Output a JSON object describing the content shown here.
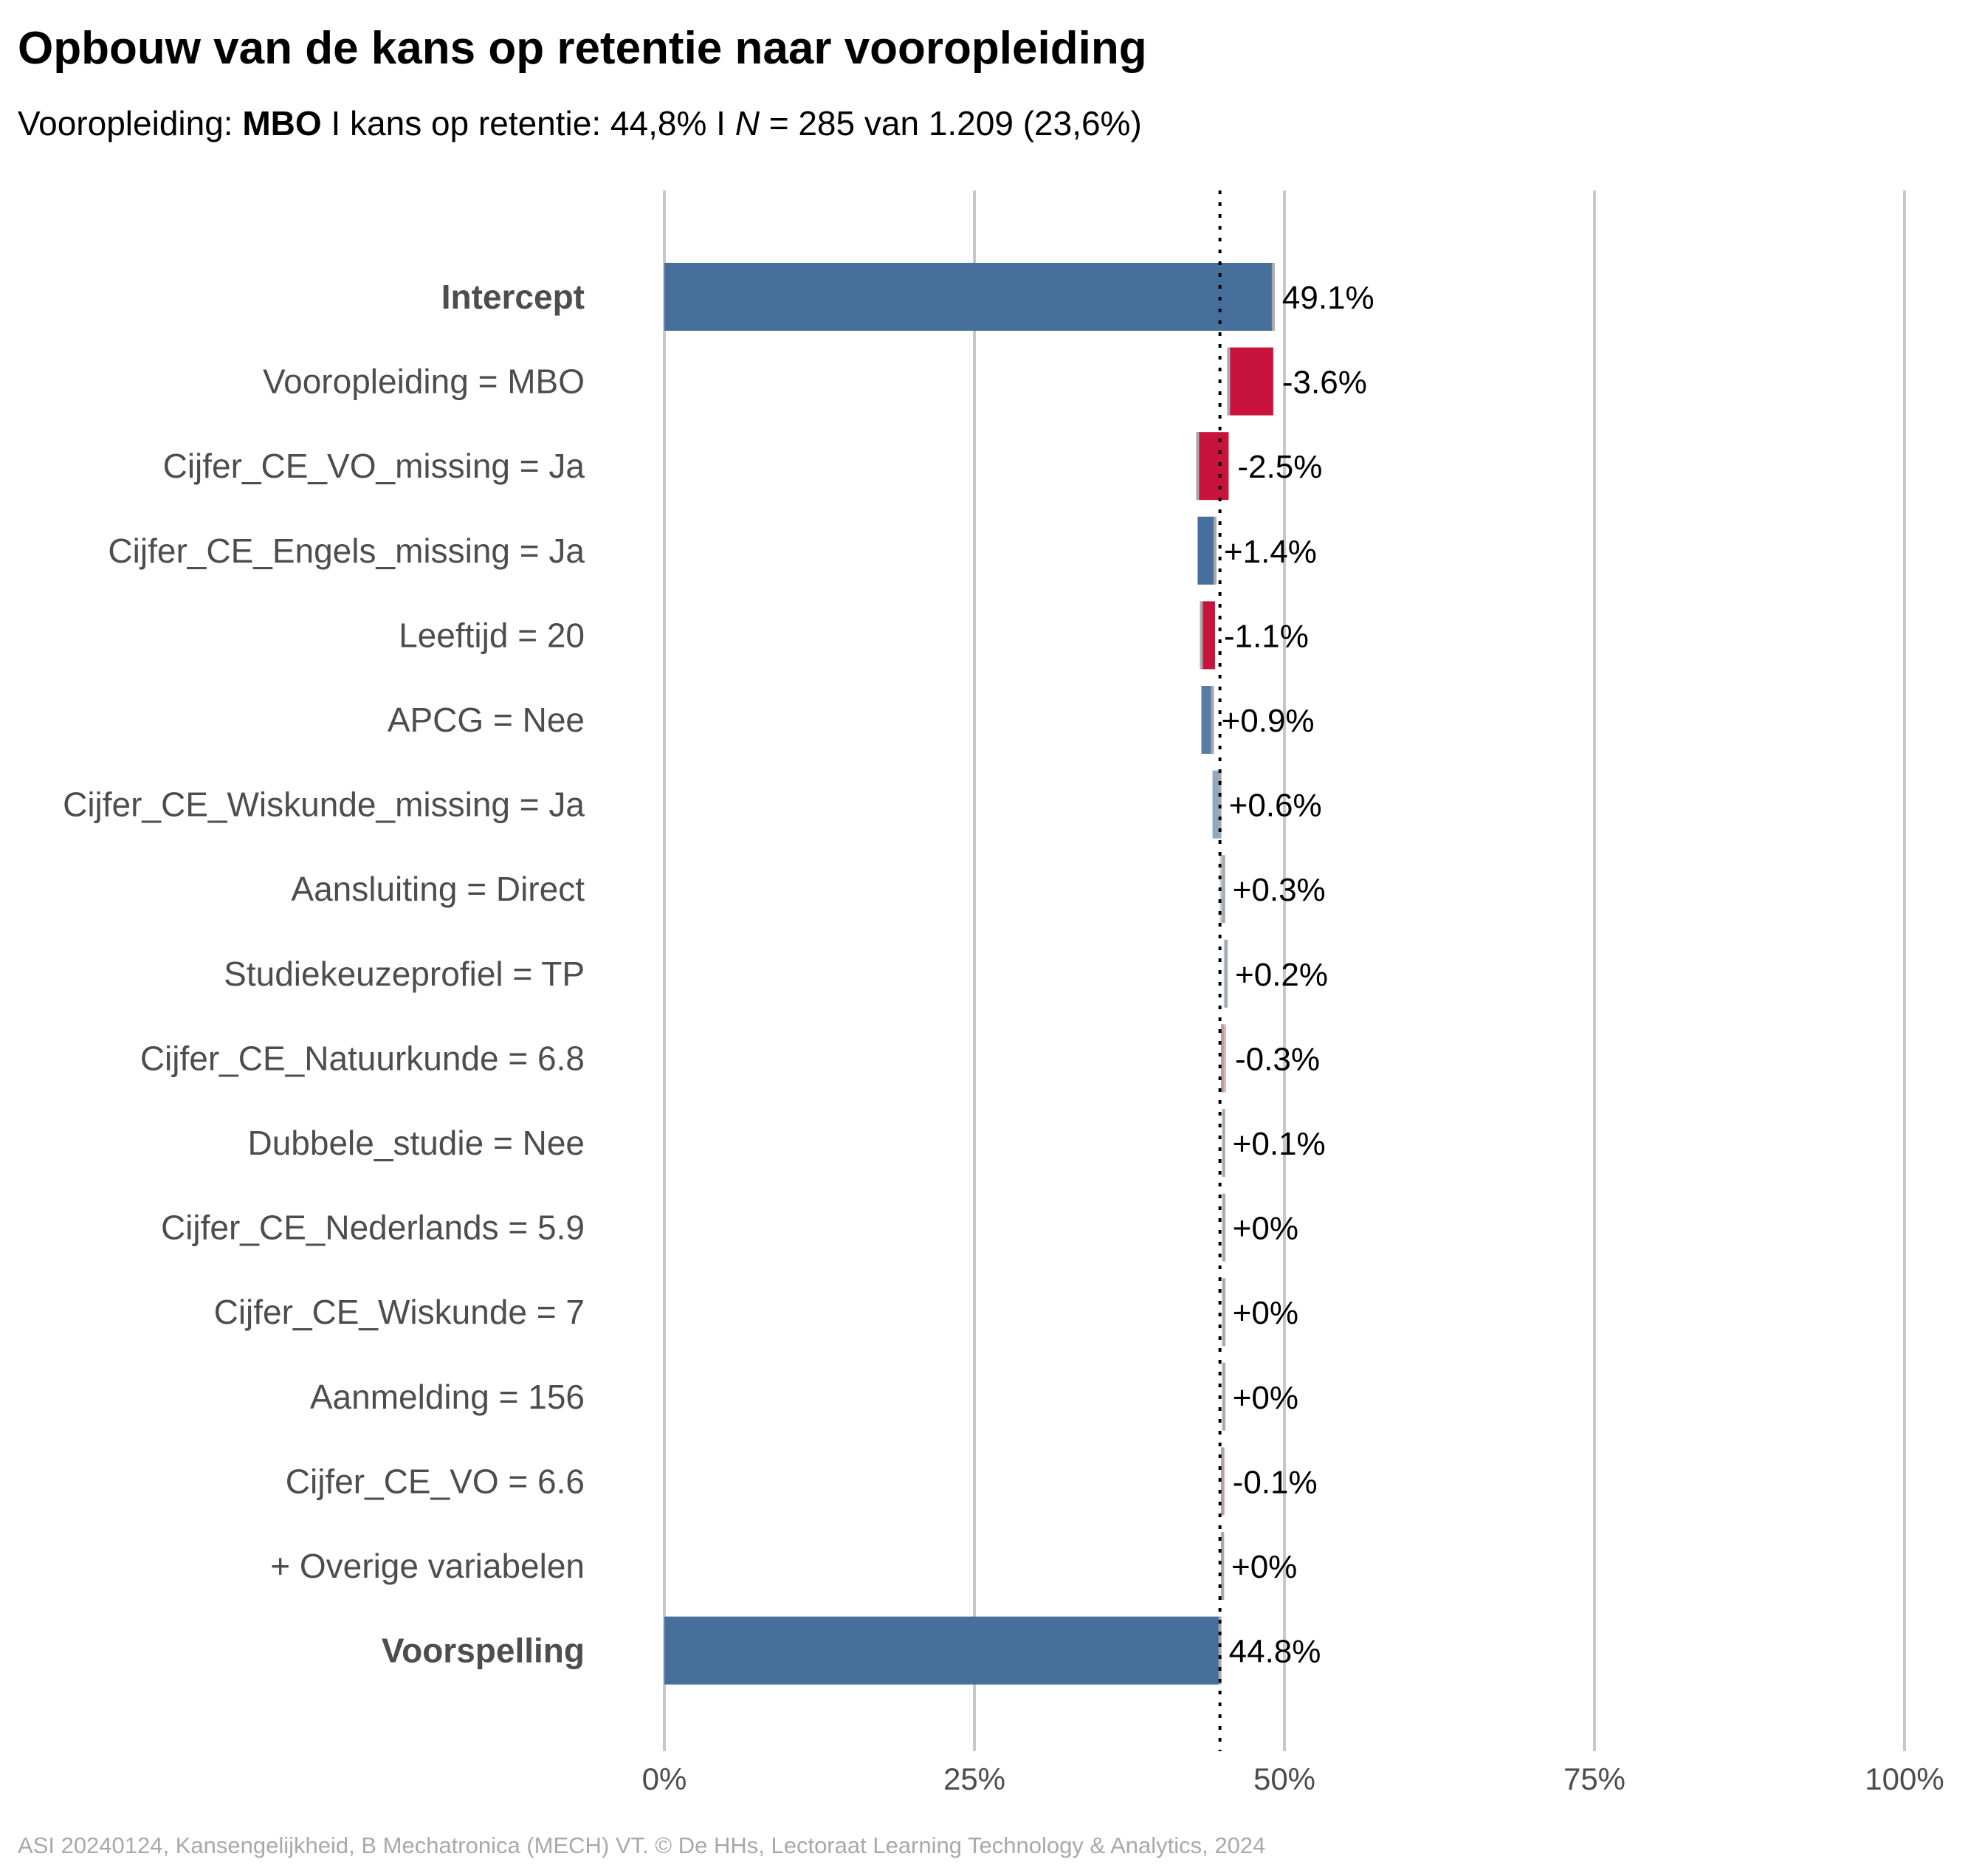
{
  "title": "Opbouw van de kans op retentie naar vooropleiding",
  "subtitle": {
    "prefix": "Vooropleiding: ",
    "group": "MBO",
    "middle": " I kans op retentie: 44,8% I ",
    "n_symbol": "N",
    "suffix": " = 285 van 1.209 (23,6%)"
  },
  "caption": "ASI 20240124, Kansengelijkheid, B Mechatronica (MECH) VT. © De HHs, Lectoraat Learning Technology & Analytics, 2024",
  "colors": {
    "total": "#466f9b",
    "positive": "#466f9b",
    "negative": "#c8133d",
    "neutral": "#a9a9a9",
    "grid": "#c8c8c8",
    "label_text": "#4d4d4d",
    "value_text": "#000000"
  },
  "chart_data": {
    "type": "waterfall",
    "orientation": "horizontal",
    "x_unit": "%",
    "xlim": [
      0,
      100
    ],
    "x_ticks": [
      0,
      25,
      50,
      75,
      100
    ],
    "x_tick_labels": [
      "0%",
      "25%",
      "50%",
      "75%",
      "100%"
    ],
    "reference_line": 44.8,
    "grid": true,
    "rows": [
      {
        "label": "Intercept",
        "kind": "total",
        "value": 49.1,
        "value_label": "49.1%"
      },
      {
        "label": "Vooropleiding = MBO",
        "kind": "step",
        "value": -3.6,
        "value_label": "-3.6%"
      },
      {
        "label": "Cijfer_CE_VO_missing = Ja",
        "kind": "step",
        "value": -2.5,
        "value_label": "-2.5%"
      },
      {
        "label": "Cijfer_CE_Engels_missing = Ja",
        "kind": "step",
        "value": 1.4,
        "value_label": "+1.4%"
      },
      {
        "label": "Leeftijd = 20",
        "kind": "step",
        "value": -1.1,
        "value_label": "-1.1%"
      },
      {
        "label": "APCG = Nee",
        "kind": "step",
        "value": 0.9,
        "value_label": "+0.9%"
      },
      {
        "label": "Cijfer_CE_Wiskunde_missing = Ja",
        "kind": "step",
        "value": 0.6,
        "value_label": "+0.6%"
      },
      {
        "label": "Aansluiting = Direct",
        "kind": "step",
        "value": 0.3,
        "value_label": "+0.3%"
      },
      {
        "label": "Studiekeuzeprofiel = TP",
        "kind": "step",
        "value": 0.2,
        "value_label": "+0.2%"
      },
      {
        "label": "Cijfer_CE_Natuurkunde = 6.8",
        "kind": "step",
        "value": -0.3,
        "value_label": "-0.3%"
      },
      {
        "label": "Dubbele_studie = Nee",
        "kind": "step",
        "value": 0.1,
        "value_label": "+0.1%"
      },
      {
        "label": "Cijfer_CE_Nederlands = 5.9",
        "kind": "step",
        "value": 0.0,
        "value_label": "+0%"
      },
      {
        "label": "Cijfer_CE_Wiskunde = 7",
        "kind": "step",
        "value": 0.0,
        "value_label": "+0%"
      },
      {
        "label": "Aanmelding = 156",
        "kind": "step",
        "value": 0.0,
        "value_label": "+0%"
      },
      {
        "label": "Cijfer_CE_VO = 6.6",
        "kind": "step",
        "value": -0.1,
        "value_label": "-0.1%"
      },
      {
        "label": "+ Overige variabelen",
        "kind": "step",
        "value": 0.0,
        "value_label": "+0%"
      },
      {
        "label": "Voorspelling",
        "kind": "total",
        "value": 44.8,
        "value_label": "44.8%"
      }
    ]
  }
}
